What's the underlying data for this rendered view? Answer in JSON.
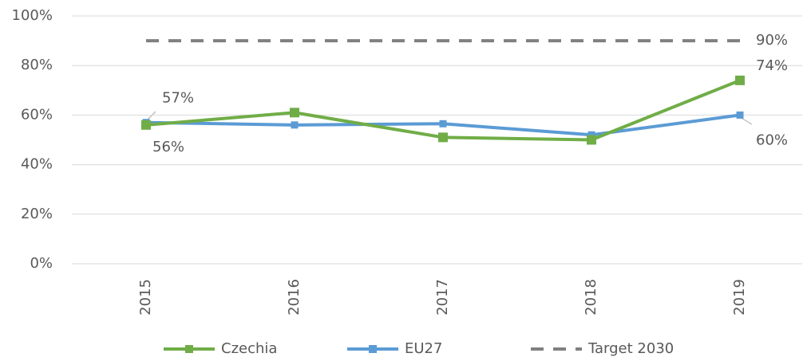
{
  "chart_data": {
    "type": "line",
    "categories": [
      "2015",
      "2016",
      "2017",
      "2018",
      "2019"
    ],
    "series": [
      {
        "name": "Czechia",
        "color": "#70ad47",
        "marker": "square",
        "values": [
          56,
          61,
          51,
          50,
          74
        ],
        "value_labels": [
          "56%",
          null,
          null,
          null,
          "74%"
        ]
      },
      {
        "name": "EU27",
        "color": "#5b9bd5",
        "marker": "square",
        "values": [
          57,
          56,
          56.5,
          52,
          60
        ],
        "value_labels": [
          "57%",
          null,
          null,
          null,
          "60%"
        ]
      },
      {
        "name": "Target 2030",
        "color": "#808080",
        "line_style": "dashed",
        "values": [
          90,
          90,
          90,
          90,
          90
        ],
        "value_labels": [
          null,
          null,
          null,
          null,
          "90%"
        ]
      }
    ],
    "ylim": [
      0,
      100
    ],
    "yticks": [
      {
        "value": 0,
        "label": "0%"
      },
      {
        "value": 20,
        "label": "20%"
      },
      {
        "value": 40,
        "label": "40%"
      },
      {
        "value": 60,
        "label": "60%"
      },
      {
        "value": 80,
        "label": "80%"
      },
      {
        "value": 100,
        "label": "100%"
      }
    ],
    "grid": true,
    "legend": "bottom"
  }
}
